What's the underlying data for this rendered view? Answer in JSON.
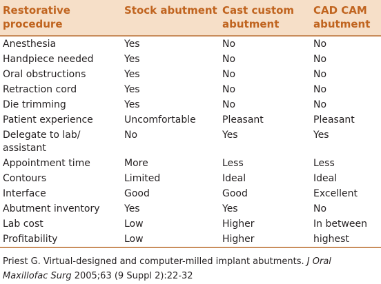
{
  "table": {
    "headers": [
      "Restorative procedure",
      "Stock abutment",
      "Cast custom abutment",
      "CAD CAM abutment"
    ],
    "rows": [
      [
        "Anesthesia",
        "Yes",
        "No",
        "No"
      ],
      [
        "Handpiece needed",
        "Yes",
        "No",
        "No"
      ],
      [
        "Oral obstructions",
        "Yes",
        "No",
        "No"
      ],
      [
        "Retraction cord",
        "Yes",
        "No",
        "No"
      ],
      [
        "Die trimming",
        "Yes",
        "No",
        "No"
      ],
      [
        "Patient experience",
        "Uncomfortable",
        "Pleasant",
        "Pleasant"
      ],
      [
        "Delegate to lab/ assistant",
        "No",
        "Yes",
        "Yes"
      ],
      [
        "Appointment time",
        "More",
        "Less",
        "Less"
      ],
      [
        "Contours",
        "Limited",
        "Ideal",
        "Ideal"
      ],
      [
        "Interface",
        "Good",
        "Good",
        "Excellent"
      ],
      [
        "Abutment inventory",
        "Yes",
        "Yes",
        "No"
      ],
      [
        "Lab cost",
        "Low",
        "Higher",
        "In between"
      ],
      [
        "Profitability",
        "Low",
        "Higher",
        "highest"
      ]
    ]
  },
  "citation": {
    "prefix": "Priest G. Virtual-designed and computer-milled implant abutments. ",
    "journal": "J Oral Maxillofac Surg",
    "suffix": " 2005;63 (9 Suppl 2):22-32"
  },
  "colors": {
    "header_bg": "#f6dfc8",
    "header_text": "#c0641f",
    "rule": "#c98d5c",
    "body_text": "#231f20"
  }
}
